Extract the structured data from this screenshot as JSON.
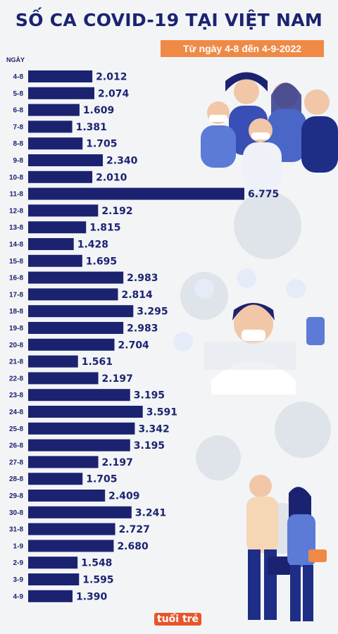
{
  "title": "SỐ CA COVID-19 TẠI VIỆT NAM",
  "subtitle": "Từ ngày 4-8 đến 4-9-2022",
  "logo_text": "tuổi trẻ",
  "colors": {
    "bar": "#1b2370",
    "accent": "#ef8a46",
    "background": "#f3f4f6"
  },
  "chart_data": {
    "type": "bar",
    "orientation": "horizontal",
    "title": "SỐ CA COVID-19 TẠI VIỆT NAM",
    "subtitle": "Từ ngày 4-8 đến 4-9-2022",
    "ylabel": "NGÀY",
    "xlabel": "",
    "categories": [
      "4-8",
      "5-8",
      "6-8",
      "7-8",
      "8-8",
      "9-8",
      "10-8",
      "11-8",
      "12-8",
      "13-8",
      "14-8",
      "15-8",
      "16-8",
      "17-8",
      "18-8",
      "19-8",
      "20-8",
      "21-8",
      "22-8",
      "23-8",
      "24-8",
      "25-8",
      "26-8",
      "27-8",
      "28-8",
      "29-8",
      "30-8",
      "31-8",
      "1-9",
      "2-9",
      "3-9",
      "4-9"
    ],
    "values": [
      2012,
      2074,
      1609,
      1381,
      1705,
      2340,
      2010,
      6775,
      2192,
      1815,
      1428,
      1695,
      2983,
      2814,
      3295,
      2983,
      2704,
      1561,
      2197,
      3195,
      3591,
      3342,
      3195,
      2197,
      1705,
      2409,
      3241,
      2727,
      2680,
      1548,
      1595,
      1390
    ],
    "value_labels": [
      "2.012",
      "2.074",
      "1.609",
      "1.381",
      "1.705",
      "2.340",
      "2.010",
      "6.775",
      "2.192",
      "1.815",
      "1.428",
      "1.695",
      "2.983",
      "2.814",
      "3.295",
      "2.983",
      "2.704",
      "1.561",
      "2.197",
      "3.195",
      "3.591",
      "3.342",
      "3.195",
      "2.197",
      "1.705",
      "2.409",
      "3.241",
      "2.727",
      "2.680",
      "1.548",
      "1.595",
      "1.390"
    ],
    "grid": false,
    "legend": "none"
  }
}
